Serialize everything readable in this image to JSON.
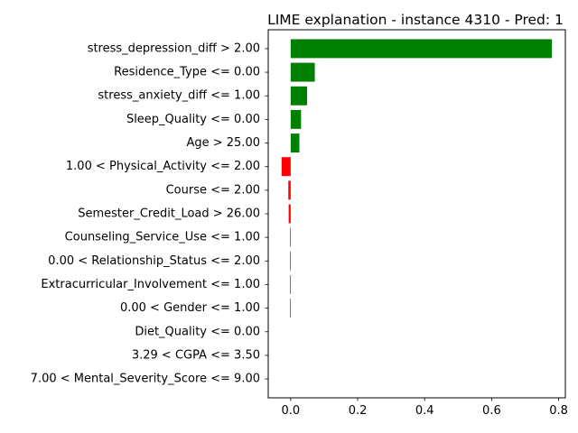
{
  "chart_data": {
    "type": "bar",
    "orientation": "horizontal",
    "title": "LIME explanation - instance 4310 - Pred: 1",
    "xlabel": "",
    "ylabel": "",
    "xlim": [
      -0.067,
      0.82
    ],
    "xticks": [
      0.0,
      0.2,
      0.4,
      0.6,
      0.8
    ],
    "xtick_labels": [
      "0.0",
      "0.2",
      "0.4",
      "0.6",
      "0.8"
    ],
    "grid": false,
    "legend": "none",
    "colors": {
      "positive": "#008000",
      "negative": "#ff0000"
    },
    "categories": [
      "stress_depression_diff > 2.00",
      "Residence_Type <= 0.00",
      "stress_anxiety_diff <= 1.00",
      "Sleep_Quality <= 0.00",
      "Age > 25.00",
      "1.00 < Physical_Activity <= 2.00",
      "Course <= 2.00",
      "Semester_Credit_Load > 26.00",
      "Counseling_Service_Use <= 1.00",
      "0.00 < Relationship_Status <= 2.00",
      "Extracurricular_Involvement <= 1.00",
      "0.00 < Gender <= 1.00",
      "Diet_Quality <= 0.00",
      "3.29 < CGPA <= 3.50",
      "7.00 < Mental_Severity_Score <= 9.00"
    ],
    "values": [
      0.78,
      0.072,
      0.049,
      0.031,
      0.026,
      -0.027,
      -0.007,
      -0.006,
      -0.002,
      -0.002,
      -0.002,
      -0.002,
      0.0,
      0.0,
      0.0
    ]
  }
}
